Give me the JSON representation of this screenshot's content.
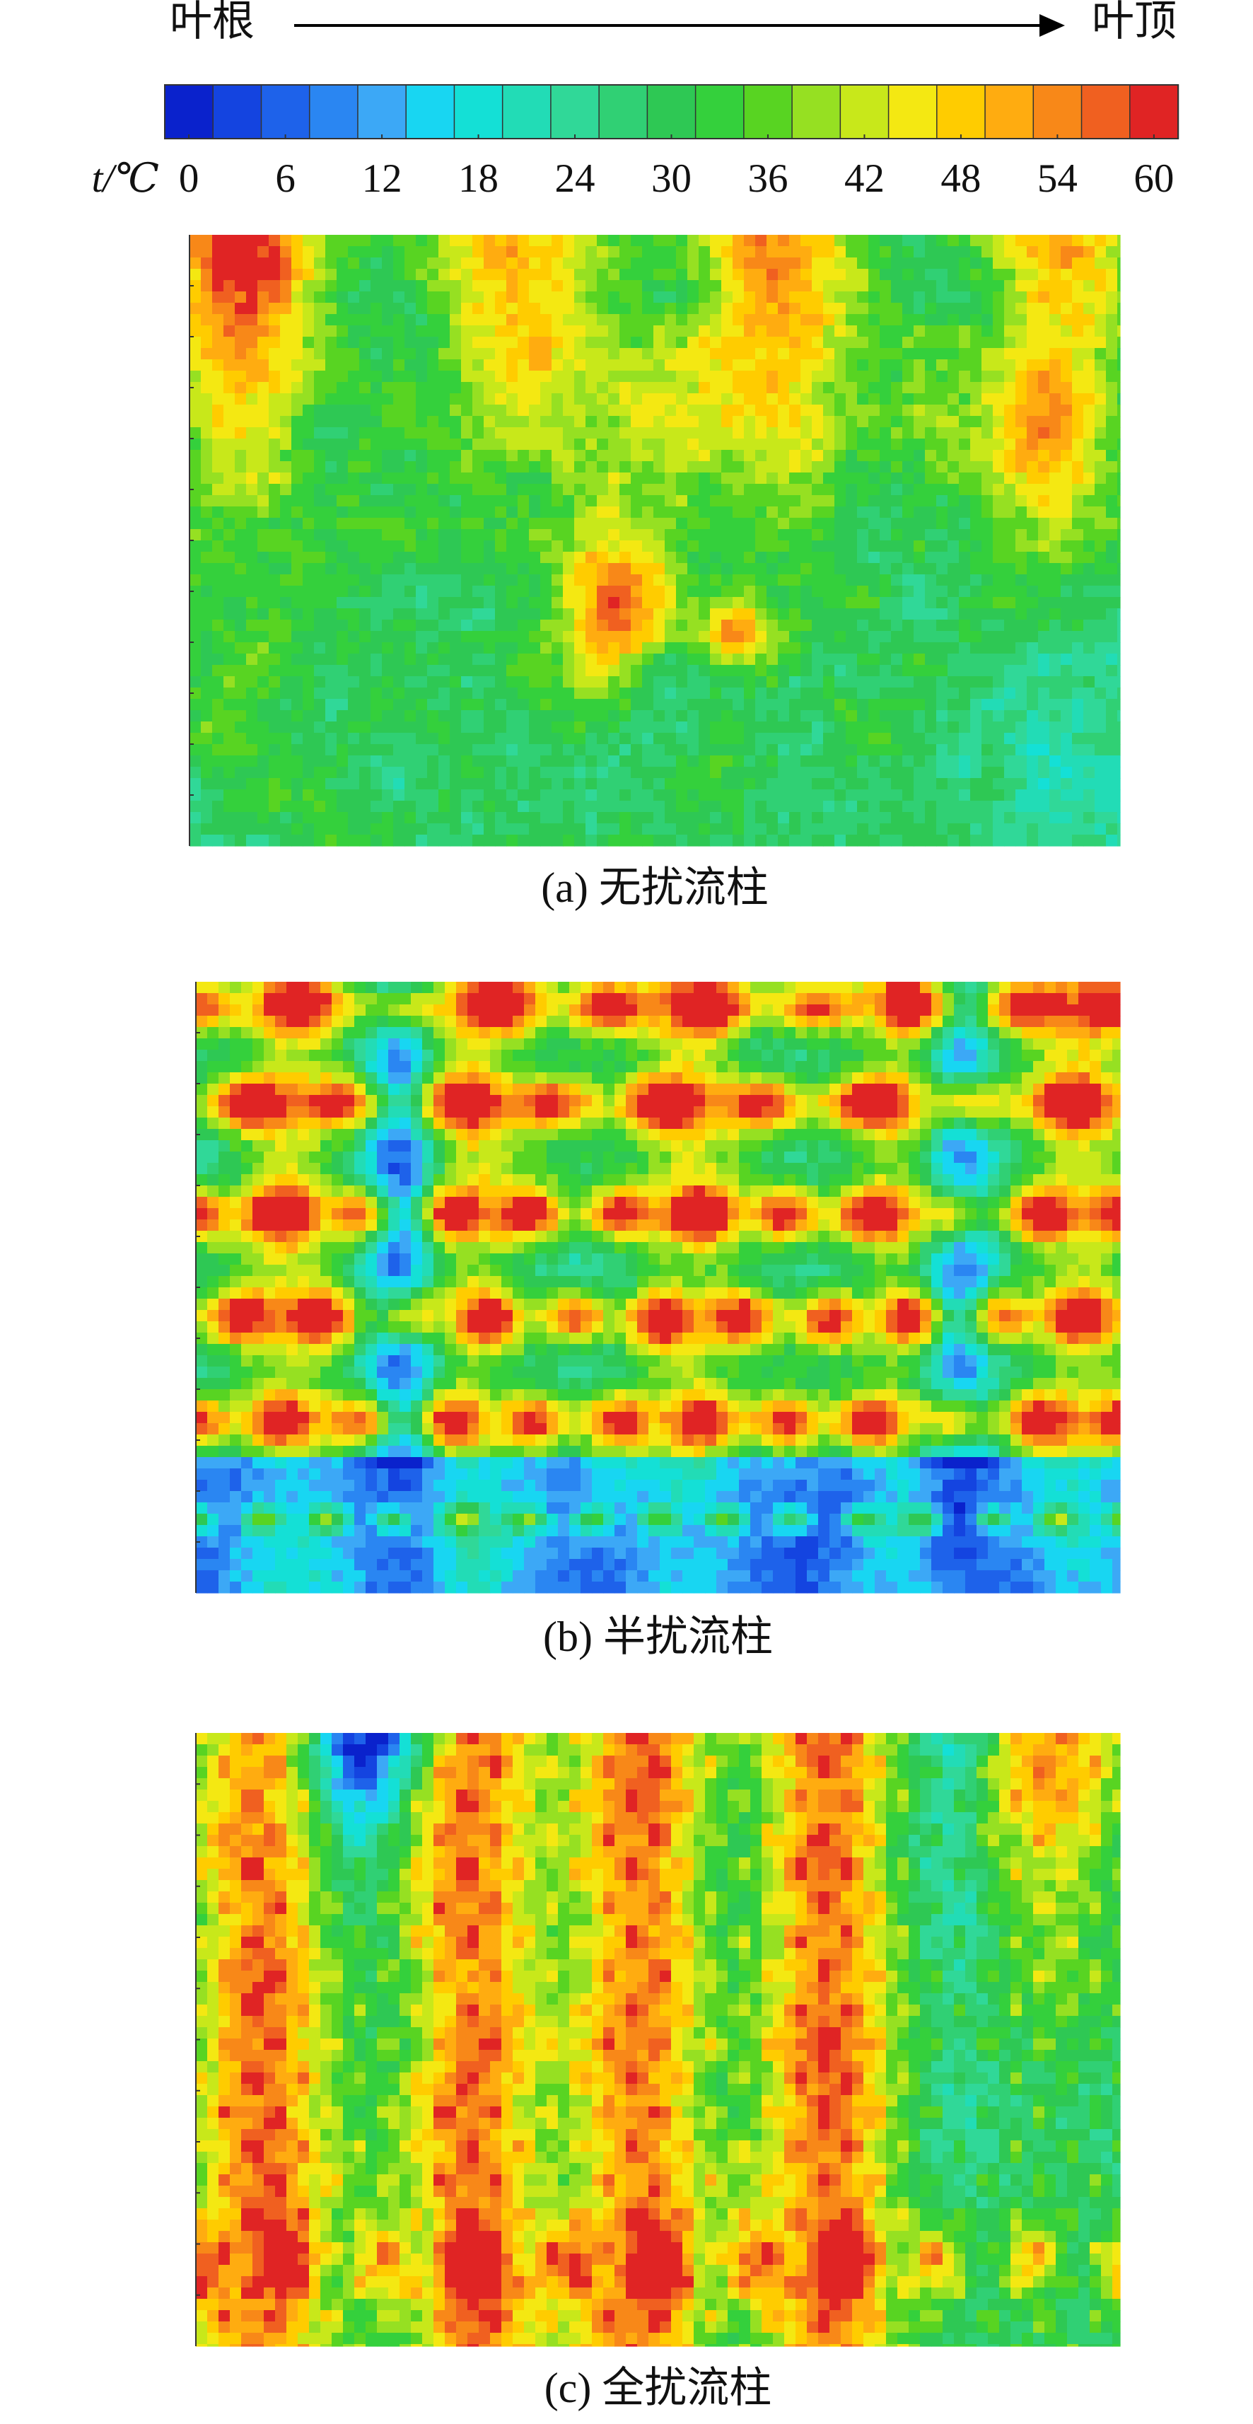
{
  "chart_data": {
    "type": "heatmap-panels",
    "direction": {
      "start": "叶根",
      "end": "叶顶"
    },
    "colorbar": {
      "label": "t/℃",
      "lim": [
        0,
        60
      ],
      "ticks": [
        0,
        6,
        12,
        18,
        24,
        30,
        36,
        42,
        48,
        54,
        60
      ],
      "colors": [
        "#0a22cc",
        "#1444e0",
        "#1e62ea",
        "#2a86f2",
        "#3ca8f6",
        "#18d6f2",
        "#14e0d6",
        "#22dcb6",
        "#30d898",
        "#30d074",
        "#2ec854",
        "#34d03c",
        "#58d422",
        "#96e022",
        "#c8e81a",
        "#f4e812",
        "#ffcc00",
        "#ffac10",
        "#f88818",
        "#f06020",
        "#e02424"
      ]
    },
    "panels": [
      {
        "caption": "(a) 无扰流柱"
      },
      {
        "caption": "(b) 半扰流柱"
      },
      {
        "caption": "(c) 全扰流柱"
      }
    ]
  }
}
